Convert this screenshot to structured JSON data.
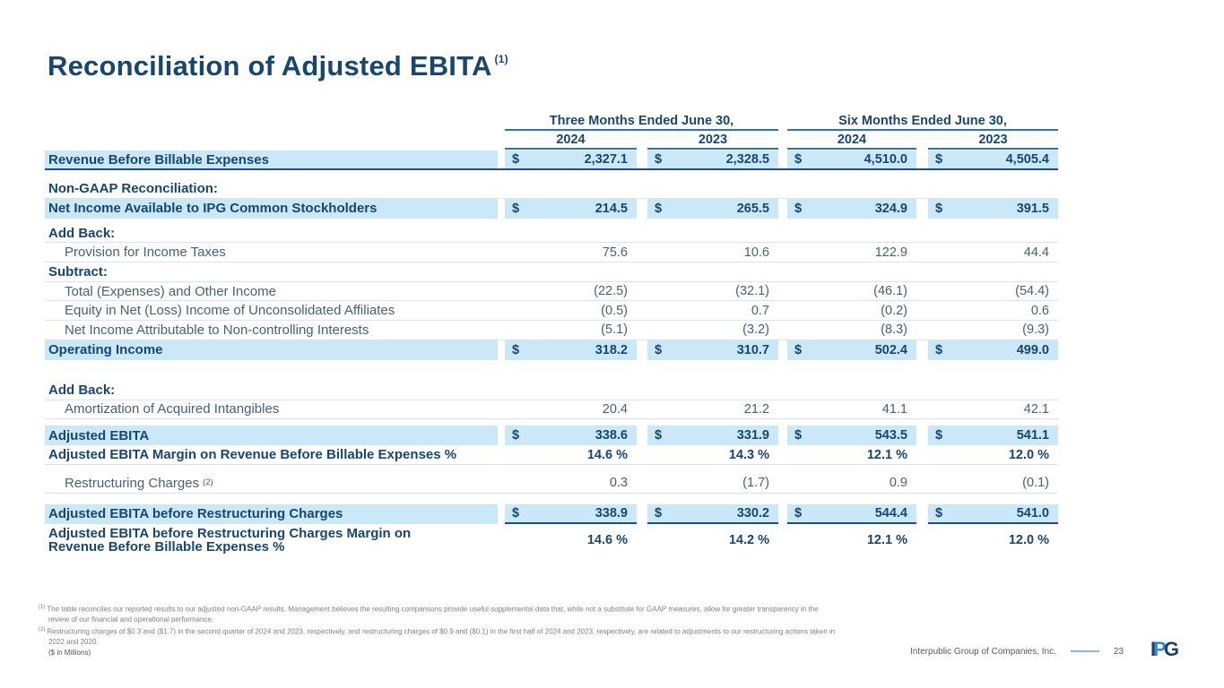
{
  "slide": {
    "title": "Reconciliation of Adjusted EBITA",
    "title_sup": "(1)"
  },
  "table": {
    "currency_symbol": "$",
    "col_groups": [
      {
        "label": "Three Months Ended June 30,",
        "years": [
          "2024",
          "2023"
        ]
      },
      {
        "label": "Six Months Ended June 30,",
        "years": [
          "2024",
          "2023"
        ]
      }
    ],
    "rows": [
      {
        "label": "Revenue Before Billable Expenses",
        "type": "highlight",
        "dollar": true,
        "thick_border": true,
        "values": [
          "2,327.1",
          "2,328.5",
          "4,510.0",
          "4,505.4"
        ]
      },
      {
        "type": "spacer",
        "h": 10
      },
      {
        "label": "Non-GAAP Reconciliation:",
        "type": "section"
      },
      {
        "label": "Net Income Available to IPG Common Stockholders",
        "type": "highlight",
        "dollar": true,
        "values": [
          "214.5",
          "265.5",
          "324.9",
          "391.5"
        ]
      },
      {
        "type": "spacer",
        "h": 6
      },
      {
        "label": "Add Back:",
        "type": "section"
      },
      {
        "label": "Provision for Income Taxes",
        "type": "item",
        "values": [
          "75.6",
          "10.6",
          "122.9",
          "44.4"
        ]
      },
      {
        "label": "Subtract:",
        "type": "section"
      },
      {
        "label": "Total (Expenses) and Other Income",
        "type": "item",
        "values": [
          "(22.5)",
          "(32.1)",
          "(46.1)",
          "(54.4)"
        ]
      },
      {
        "label": "Equity in Net (Loss) Income of Unconsolidated Affiliates",
        "type": "item",
        "values": [
          "(0.5)",
          "0.7",
          "(0.2)",
          "0.6"
        ]
      },
      {
        "label": "Net Income Attributable to Non-controlling Interests",
        "type": "item",
        "values": [
          "(5.1)",
          "(3.2)",
          "(8.3)",
          "(9.3)"
        ]
      },
      {
        "label": "Operating Income",
        "type": "highlight",
        "dollar": true,
        "values": [
          "318.2",
          "310.7",
          "502.4",
          "499.0"
        ]
      },
      {
        "type": "spacer",
        "h": 23
      },
      {
        "label": "Add Back:",
        "type": "section"
      },
      {
        "label": "Amortization of Acquired Intangibles",
        "type": "item",
        "values": [
          "20.4",
          "21.2",
          "41.1",
          "42.1"
        ]
      },
      {
        "type": "spacer",
        "h": 7
      },
      {
        "label": "Adjusted EBITA",
        "type": "highlight",
        "dollar": true,
        "values": [
          "338.6",
          "331.9",
          "543.5",
          "541.1"
        ]
      },
      {
        "label": "Adjusted EBITA Margin on Revenue Before Billable Expenses %",
        "type": "percent",
        "values": [
          "14.6 %",
          "14.3 %",
          "12.1 %",
          "12.0 %"
        ]
      },
      {
        "type": "spacer",
        "h": 10
      },
      {
        "label": "Restructuring Charges",
        "label_sup": "(2)",
        "type": "item",
        "values": [
          "0.3",
          "(1.7)",
          "0.9",
          "(0.1)"
        ]
      },
      {
        "type": "spacer",
        "h": 12
      },
      {
        "label": "Adjusted EBITA before Restructuring Charges",
        "type": "highlight",
        "dollar": true,
        "underline": true,
        "values": [
          "338.9",
          "330.2",
          "544.4",
          "541.0"
        ]
      },
      {
        "label": "Adjusted EBITA before Restructuring Charges Margin on Revenue Before Billable Expenses %",
        "type": "percent",
        "twoline": true,
        "values": [
          "14.6 %",
          "14.2 %",
          "12.1 %",
          "12.0 %"
        ]
      }
    ]
  },
  "footnotes": {
    "items": [
      {
        "marker": "(1)",
        "text": "The table reconciles our reported results to our adjusted non-GAAP results. Management believes the resulting comparisons provide useful supplemental data that, while not a substitute for GAAP measures, allow for greater transparency in the review of our financial and operational performance."
      },
      {
        "marker": "(2)",
        "text": "Restructuring charges of $0.3 and ($1.7) in the second quarter of 2024 and 2023, respectively, and restructuring charges of $0.9 and ($0.1) in the first half of 2024 and 2023, respectively, are related to adjustments to our restructuring actions taken in 2022 and 2020."
      }
    ],
    "units_note": "($ in Millions)"
  },
  "footer": {
    "company": "Interpublic Group of Companies, Inc.",
    "page": "23",
    "logo_letters": [
      "I",
      "P",
      "G"
    ]
  },
  "colors": {
    "accent_navy": "#17466F",
    "highlight": "#CBE8F8",
    "rule_blue": "#2E74B5",
    "thick_rule": "#1F4E79",
    "separator": "#DCE3EA",
    "item_text": "#456179",
    "footnote_gray": "#808080",
    "footer_gray": "#5A5A5A",
    "dash_blue": "#8FB8DC",
    "logo_navy": "#1F3D70",
    "logo_blue": "#3E86C8"
  }
}
